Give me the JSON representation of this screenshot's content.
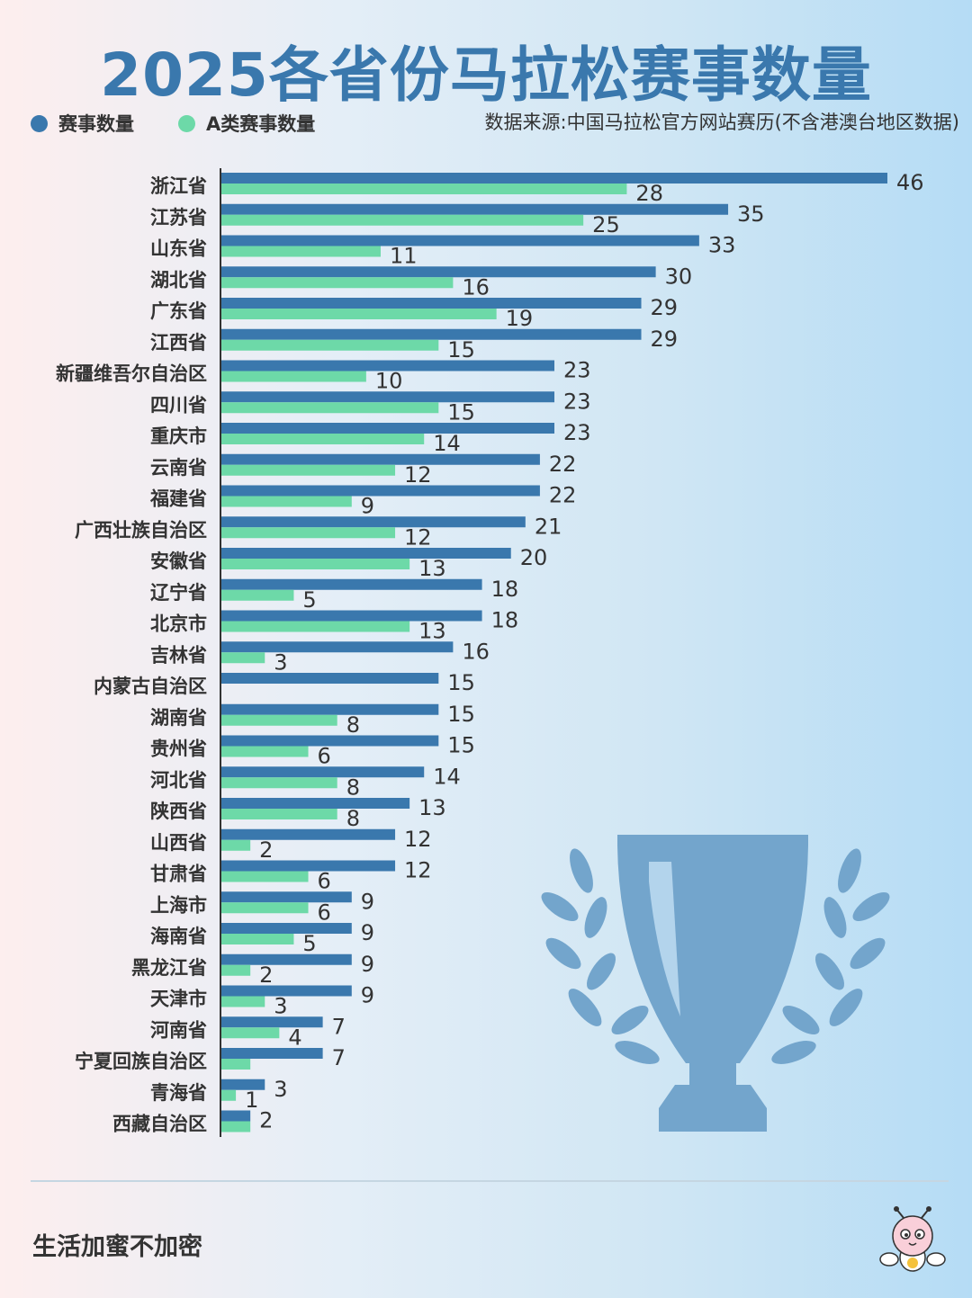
{
  "title": "2025各省份马拉松赛事数量",
  "source": "数据来源:中国马拉松官方网站赛历(不含港澳台地区数据)",
  "footer": "生活加蜜不加密",
  "icons": {
    "trophy": "trophy-icon",
    "mascot": "bee-mascot-icon"
  },
  "colors": {
    "total": "#3a78ad",
    "a_class": "#6dd9a8",
    "title": "#3a78ad",
    "trophy": "#73a5cc"
  },
  "chart_data": {
    "type": "bar",
    "orientation": "horizontal",
    "title": "2025各省份马拉松赛事数量",
    "legend_position": "top-left",
    "grid": false,
    "xlim": [
      0,
      46
    ],
    "categories": [
      "浙江省",
      "江苏省",
      "山东省",
      "湖北省",
      "广东省",
      "江西省",
      "新疆维吾尔自治区",
      "四川省",
      "重庆市",
      "云南省",
      "福建省",
      "广西壮族自治区",
      "安徽省",
      "辽宁省",
      "北京市",
      "吉林省",
      "内蒙古自治区",
      "湖南省",
      "贵州省",
      "河北省",
      "陕西省",
      "山西省",
      "甘肃省",
      "上海市",
      "海南省",
      "黑龙江省",
      "天津市",
      "河南省",
      "宁夏回族自治区",
      "青海省",
      "西藏自治区"
    ],
    "series": [
      {
        "name": "赛事数量",
        "color": "#3a78ad",
        "values": [
          46,
          35,
          33,
          30,
          29,
          29,
          23,
          23,
          23,
          22,
          22,
          21,
          20,
          18,
          18,
          16,
          15,
          15,
          15,
          14,
          13,
          12,
          12,
          9,
          9,
          9,
          9,
          7,
          7,
          3,
          2
        ],
        "labels": [
          "46",
          "35",
          "33",
          "30",
          "29",
          "29",
          "23",
          "23",
          "23",
          "22",
          "22",
          "21",
          "20",
          "18",
          "18",
          "16",
          "15",
          "15",
          "15",
          "14",
          "13",
          "12",
          "12",
          "9",
          "9",
          "9",
          "9",
          "7",
          "7",
          "3",
          "2"
        ]
      },
      {
        "name": "A类赛事数量",
        "color": "#6dd9a8",
        "values": [
          28,
          25,
          11,
          16,
          19,
          15,
          10,
          15,
          14,
          12,
          9,
          12,
          13,
          5,
          13,
          3,
          0,
          8,
          6,
          8,
          8,
          2,
          6,
          6,
          5,
          2,
          3,
          4,
          2,
          1,
          2
        ],
        "labels": [
          "28",
          "25",
          "11",
          "16",
          "19",
          "15",
          "10",
          "15",
          "14",
          "12",
          "9",
          "12",
          "13",
          "5",
          "13",
          "3",
          "",
          "8",
          "6",
          "8",
          "8",
          "2",
          "6",
          "6",
          "5",
          "2",
          "3",
          "4",
          "",
          "1",
          ""
        ]
      }
    ]
  }
}
